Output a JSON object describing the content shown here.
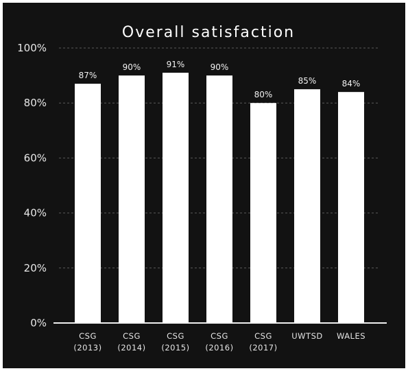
{
  "chart_data": {
    "type": "bar",
    "title": "Overall satisfaction",
    "xlabel": "",
    "ylabel": "",
    "ylim": [
      0,
      100
    ],
    "yticks": [
      "0%",
      "20%",
      "40%",
      "60%",
      "80%",
      "100%"
    ],
    "categories": [
      [
        "CSG",
        "(2013)"
      ],
      [
        "CSG",
        "(2014)"
      ],
      [
        "CSG",
        "(2015)"
      ],
      [
        "CSG",
        "(2016)"
      ],
      [
        "CSG",
        "(2017)"
      ],
      [
        "UWTSD",
        ""
      ],
      [
        "WALES",
        ""
      ]
    ],
    "values": [
      87,
      90,
      91,
      90,
      80,
      85,
      84
    ],
    "data_labels": [
      "87%",
      "90%",
      "91%",
      "90%",
      "80%",
      "85%",
      "84%"
    ],
    "grid": true,
    "legend": "none",
    "colors": {
      "background": "#121212",
      "bar": "#ffffff",
      "text": "#e6e6e6",
      "grid": "#5a5a5a"
    }
  }
}
